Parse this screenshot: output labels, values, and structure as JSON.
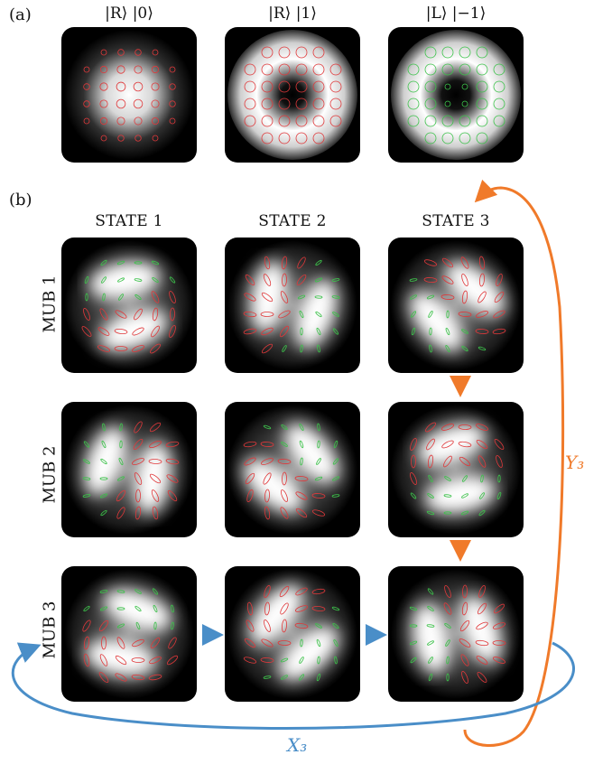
{
  "panel_labels": {
    "a": "(a)",
    "b": "(b)"
  },
  "top_states": [
    "|R⟩ |0⟩",
    "|R⟩ |1⟩",
    "|L⟩ |−1⟩"
  ],
  "columns": [
    "STATE 1",
    "STATE 2",
    "STATE 3"
  ],
  "rows": [
    "MUB 1",
    "MUB 2",
    "MUB 3"
  ],
  "operators": {
    "y": "Y₃",
    "x": "X₃"
  },
  "colors": {
    "orange": "#f07a2a",
    "blue": "#4a8ec8",
    "red": "#e0383a",
    "green": "#3cc24a"
  }
}
